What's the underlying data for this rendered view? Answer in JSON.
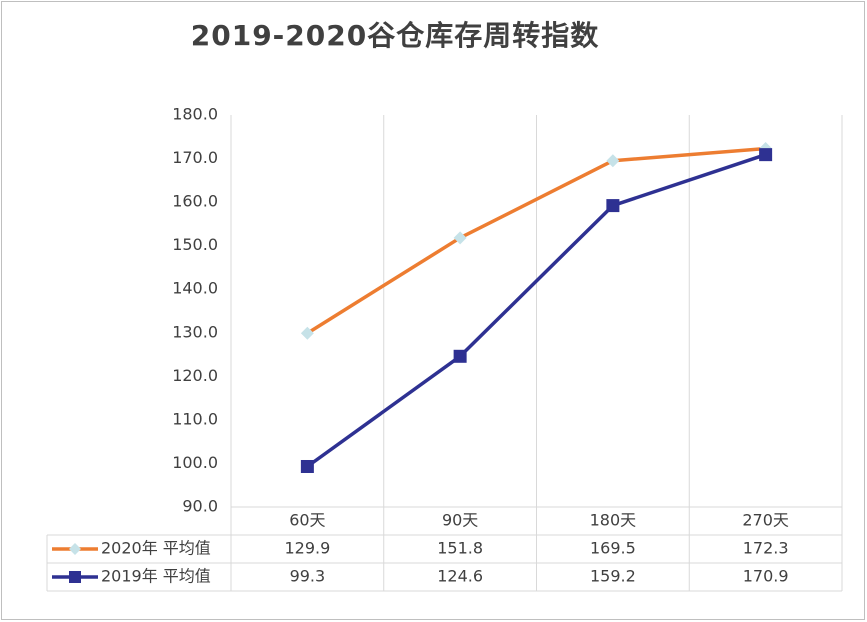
{
  "chart_data": {
    "type": "line",
    "title": "2019-2020谷仓库存周转指数",
    "categories": [
      "60天",
      "90天",
      "180天",
      "270天"
    ],
    "series": [
      {
        "name": "2020年 平均值",
        "values": [
          129.9,
          151.8,
          169.5,
          172.3
        ],
        "color": "#ED7D31",
        "marker": "diamond",
        "marker_color": "#C6E2E8",
        "value_labels": [
          "129.9",
          "151.8",
          "169.5",
          "172.3"
        ]
      },
      {
        "name": "2019年 平均值",
        "values": [
          99.3,
          124.6,
          159.2,
          170.9
        ],
        "color": "#2E3192",
        "marker": "square",
        "marker_color": "#2E3192",
        "value_labels": [
          "99.3",
          "124.6",
          "159.2",
          "170.9"
        ]
      }
    ],
    "ylim": [
      90,
      180
    ],
    "yticks": [
      "90.0",
      "100.0",
      "110.0",
      "120.0",
      "130.0",
      "140.0",
      "150.0",
      "160.0",
      "170.0",
      "180.0"
    ],
    "grid": true,
    "legend": "data-table"
  }
}
